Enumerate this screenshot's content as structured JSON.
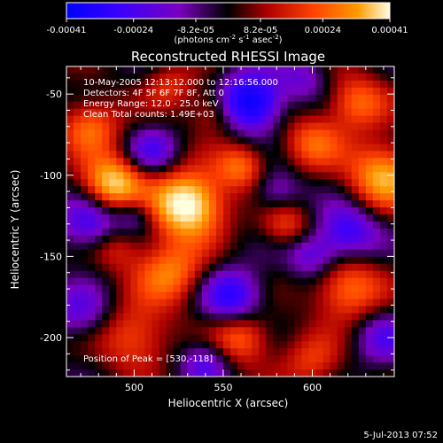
{
  "colorbar": {
    "ticks": [
      "-0.00041",
      "-0.00024",
      "-8.2e-05",
      "8.2e-05",
      "0.00024",
      "0.00041"
    ],
    "tick_values": [
      -0.00041,
      -0.00024,
      -8.2e-05,
      8.2e-05,
      0.00024,
      0.00041
    ],
    "units": "(photons cm",
    "units_exp1": "-2",
    "units_mid": " s",
    "units_exp2": "-1",
    "units_mid2": " asec",
    "units_exp3": "-2",
    "units_close": ")"
  },
  "chart_data": {
    "type": "heatmap",
    "title": "Reconstructed RHESSI Image",
    "xlabel": "Heliocentric X (arcsec)",
    "ylabel": "Heliocentric Y (arcsec)",
    "xlim": [
      462,
      646
    ],
    "ylim": [
      -224,
      -33
    ],
    "xticks": [
      500,
      550,
      600
    ],
    "yticks": [
      -50,
      -100,
      -150,
      -200
    ],
    "peak": [
      530,
      -118
    ],
    "colormap": [
      "#0000ff",
      "#3a00ff",
      "#7a00c0",
      "#000000",
      "#ad0000",
      "#ff4000",
      "#ff9a00",
      "#ffffe0"
    ],
    "annotations": [
      "10-May-2005 12:13:12.000 to 12:16:56.000",
      "Detectors: 4F 5F 6F 7F 8F, Att 0",
      "Energy Range: 12.0 - 25.0 keV",
      "Clean    Total counts: 1.49E+03"
    ],
    "peak_label": "Position of Peak = [530,-118]"
  },
  "footer": {
    "timestamp": "5-Jul-2013 07:52"
  }
}
